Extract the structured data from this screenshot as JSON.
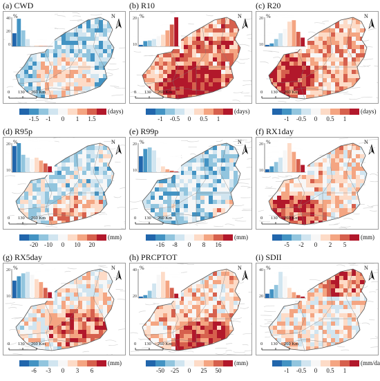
{
  "colors": [
    "#2166ac",
    "#4393c3",
    "#92c5de",
    "#d1e5f0",
    "#f7f7f7",
    "#fddbc7",
    "#f4a582",
    "#d6604d",
    "#b2182b"
  ],
  "scalebar": {
    "zero": "0",
    "mid": "130",
    "end": "260 Km"
  },
  "north_label": "N",
  "percent_label": "%",
  "panels": [
    {
      "title": "(a) CWD",
      "unit": "(days)",
      "ticks": [
        "-1.5",
        "-1",
        "0",
        "1",
        "1.5"
      ],
      "yticks": [
        "40",
        "20",
        "0"
      ],
      "hist": [
        0.45,
        0.95,
        0.55,
        0.25,
        0.05,
        0.03,
        0.02,
        0.01,
        0.0
      ]
    },
    {
      "title": "(b) R10",
      "unit": "(days)",
      "ticks": [
        "-1",
        "-0.5",
        "0",
        "0.5",
        "1"
      ],
      "yticks": [
        "20",
        "10"
      ],
      "hist": [
        0.05,
        0.18,
        0.2,
        0.25,
        0.35,
        0.4,
        0.55,
        0.75,
        1.0
      ]
    },
    {
      "title": "(c) R20",
      "unit": "(days)",
      "ticks": [
        "-1",
        "-0.5",
        "0",
        "0.5",
        "1"
      ],
      "yticks": [
        "20",
        "10"
      ],
      "hist": [
        0.05,
        0.1,
        0.25,
        0.45,
        0.6,
        0.85,
        0.9,
        0.5,
        0.3
      ]
    },
    {
      "title": "(d) R95p",
      "unit": "(mm)",
      "ticks": [
        "-20",
        "-10",
        "0",
        "10",
        "20"
      ],
      "yticks": [
        "20",
        "10"
      ],
      "hist": [
        0.9,
        1.0,
        0.6,
        0.5,
        0.45,
        0.5,
        0.4,
        0.3,
        0.2
      ]
    },
    {
      "title": "(e) R99p",
      "unit": "(mm)",
      "ticks": [
        "-16",
        "-8",
        "0",
        "8",
        "16"
      ],
      "yticks": [
        "20",
        "10"
      ],
      "hist": [
        0.55,
        0.8,
        0.85,
        0.75,
        0.5,
        0.2,
        0.1,
        0.05,
        0.02
      ]
    },
    {
      "title": "(f) RX1day",
      "unit": "(mm)",
      "ticks": [
        "-5",
        "-2",
        "0",
        "2",
        "5"
      ],
      "yticks": [
        "20",
        "10"
      ],
      "hist": [
        0.1,
        0.2,
        0.35,
        0.5,
        0.75,
        1.0,
        0.7,
        0.45,
        0.25
      ]
    },
    {
      "title": "(g) RX5day",
      "unit": "(mm)",
      "ticks": [
        "-6",
        "-3",
        "0",
        "3",
        "6"
      ],
      "yticks": [
        "20",
        "10"
      ],
      "hist": [
        0.6,
        0.75,
        0.85,
        0.9,
        0.8,
        0.65,
        0.55,
        0.35,
        0.2
      ]
    },
    {
      "title": "(h) PRCPTOT",
      "unit": "(mm)",
      "ticks": [
        "-50",
        "-25",
        "0",
        "25",
        "50"
      ],
      "yticks": [
        "40",
        "20"
      ],
      "hist": [
        0.05,
        0.1,
        0.25,
        0.5,
        0.8,
        0.9,
        0.6,
        0.35,
        0.15
      ]
    },
    {
      "title": "(i) SDII",
      "unit": "(mm/day)",
      "ticks": [
        "-1",
        "-0.5",
        "0",
        "0.5",
        "1"
      ],
      "yticks": [
        "40",
        "20"
      ],
      "hist": [
        0.15,
        0.3,
        0.45,
        0.9,
        0.75,
        0.35,
        0.2,
        0.1,
        0.05
      ]
    }
  ]
}
